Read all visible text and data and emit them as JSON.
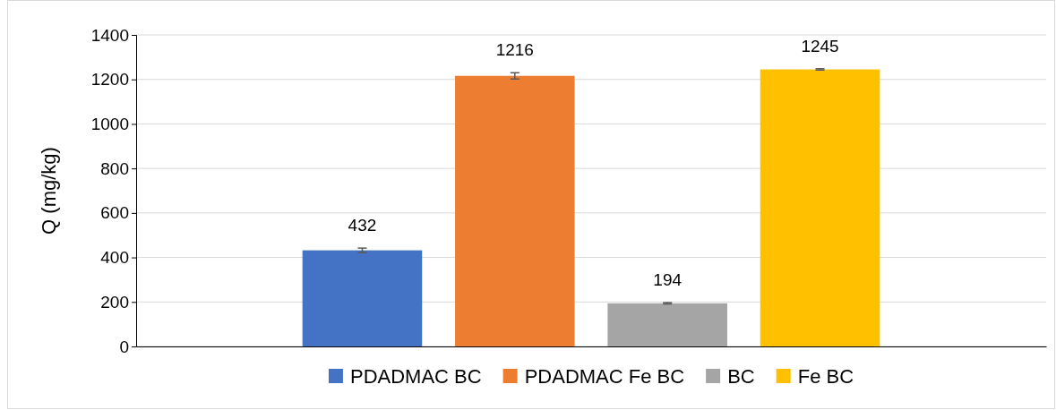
{
  "chart_data": {
    "type": "bar",
    "ylabel": "Q (mg/kg)",
    "categories": [
      null
    ],
    "series": [
      {
        "name": "PDADMAC BC",
        "color": "#4472c4",
        "values": [
          432
        ],
        "errors": [
          10
        ]
      },
      {
        "name": "PDADMAC Fe BC",
        "color": "#ed7d31",
        "values": [
          1216
        ],
        "errors": [
          14
        ]
      },
      {
        "name": "BC",
        "color": "#a5a5a5",
        "values": [
          194
        ],
        "errors": [
          3
        ]
      },
      {
        "name": "Fe BC",
        "color": "#ffc000",
        "values": [
          1245
        ],
        "errors": [
          3
        ]
      }
    ],
    "ylim": [
      0,
      1400
    ],
    "yticks": [
      0,
      200,
      400,
      600,
      800,
      1000,
      1200,
      1400
    ],
    "grid": "y",
    "legend": "bottom",
    "data_labels": true
  }
}
